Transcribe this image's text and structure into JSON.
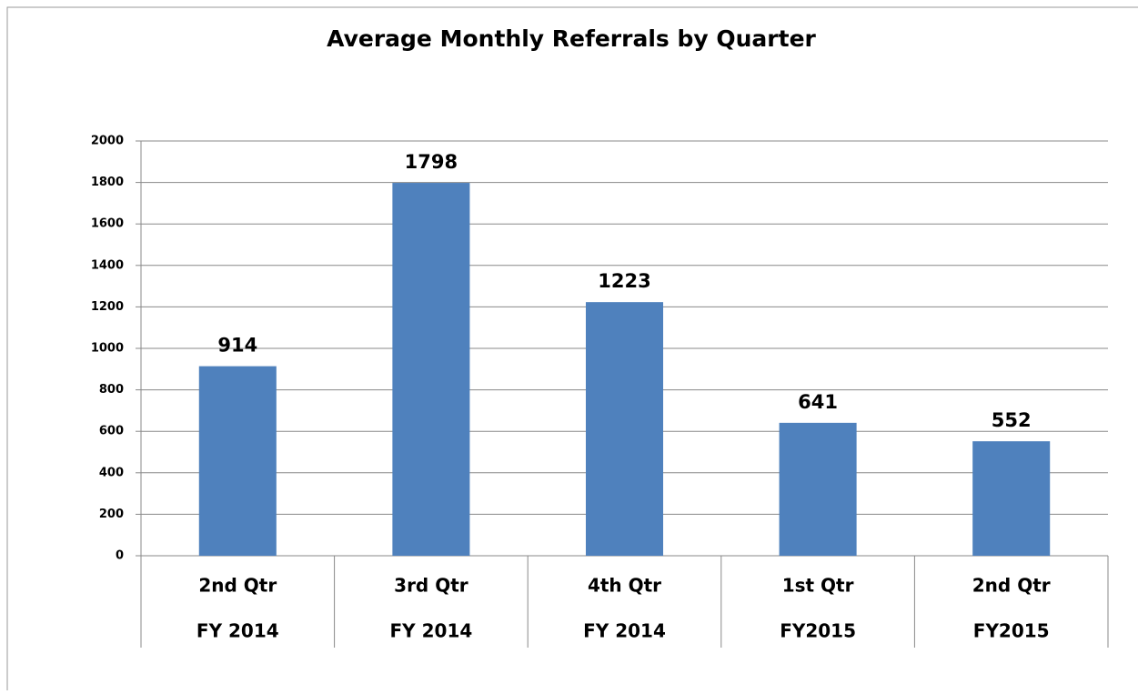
{
  "chart_data": {
    "type": "bar",
    "title": "Average Monthly Referrals by Quarter",
    "categories": [
      "2nd Qtr",
      "3rd Qtr",
      "4th Qtr",
      "1st Qtr",
      "2nd Qtr"
    ],
    "category_groups": [
      "FY 2014",
      "FY 2014",
      "FY 2014",
      "FY2015",
      "FY2015"
    ],
    "values": [
      914,
      1798,
      1223,
      641,
      552
    ],
    "color": "#4f81bd",
    "ylim": [
      0,
      2000
    ],
    "yticks": [
      0,
      200,
      400,
      600,
      800,
      1000,
      1200,
      1400,
      1600,
      1800,
      2000
    ],
    "grid": true
  }
}
